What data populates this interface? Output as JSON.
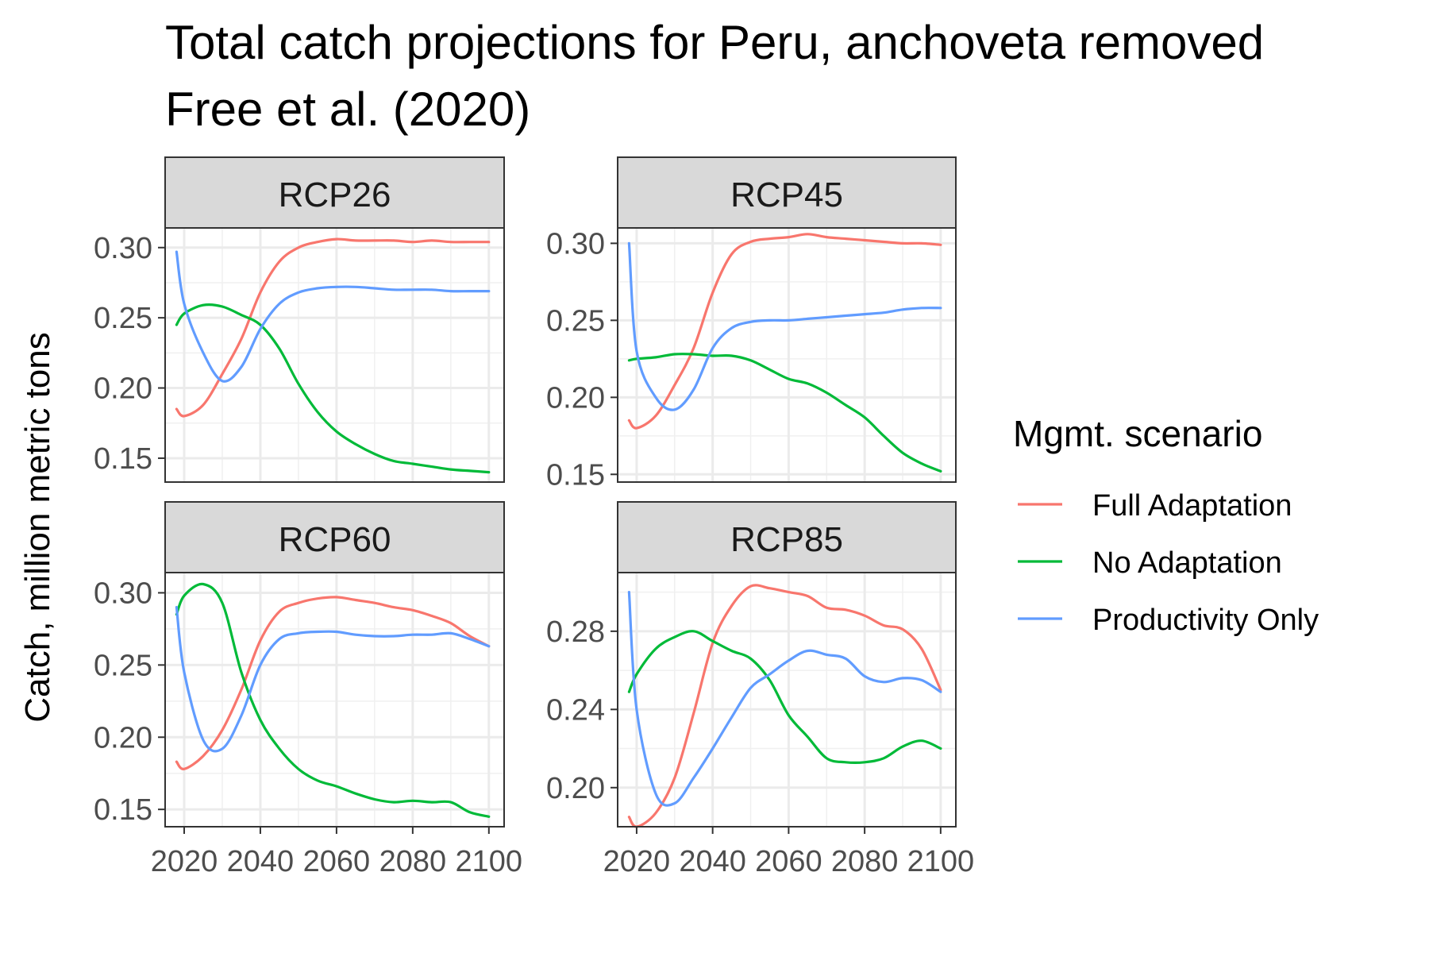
{
  "chart_data": {
    "type": "line",
    "title_lines": [
      "Total catch projections for Peru, anchoveta removed",
      "Free et al. (2020)"
    ],
    "ylabel": "Catch, million metric tons",
    "xlabel": "",
    "legend": {
      "title": "Mgmt. scenario",
      "placement": "right"
    },
    "series_styles": [
      {
        "name": "Full Adaptation",
        "color": "#F8766D"
      },
      {
        "name": "No Adaptation",
        "color": "#00BA38"
      },
      {
        "name": "Productivity Only",
        "color": "#619CFF"
      }
    ],
    "x_ticks": [
      2020,
      2040,
      2060,
      2080,
      2100
    ],
    "xlim": [
      2015,
      2104
    ],
    "grid": true,
    "facets": [
      {
        "label": "RCP26",
        "ylim": [
          0.133,
          0.314
        ],
        "y_ticks": [
          "0.15",
          "0.20",
          "0.25",
          "0.30"
        ],
        "x": [
          2018,
          2020,
          2025,
          2030,
          2035,
          2040,
          2045,
          2050,
          2055,
          2060,
          2065,
          2070,
          2075,
          2080,
          2085,
          2090,
          2095,
          2100
        ],
        "series": [
          {
            "name": "Full Adaptation",
            "values": [
              0.185,
              0.18,
              0.188,
              0.21,
              0.235,
              0.268,
              0.29,
              0.3,
              0.304,
              0.306,
              0.305,
              0.305,
              0.305,
              0.304,
              0.305,
              0.304,
              0.304,
              0.304
            ]
          },
          {
            "name": "No Adaptation",
            "values": [
              0.245,
              0.253,
              0.259,
              0.258,
              0.252,
              0.245,
              0.228,
              0.203,
              0.183,
              0.169,
              0.16,
              0.153,
              0.148,
              0.146,
              0.144,
              0.142,
              0.141,
              0.14
            ]
          },
          {
            "name": "Productivity Only",
            "values": [
              0.297,
              0.26,
              0.225,
              0.205,
              0.215,
              0.242,
              0.26,
              0.268,
              0.271,
              0.272,
              0.272,
              0.271,
              0.27,
              0.27,
              0.27,
              0.269,
              0.269,
              0.269
            ]
          }
        ]
      },
      {
        "label": "RCP45",
        "ylim": [
          0.145,
          0.31
        ],
        "y_ticks": [
          "0.15",
          "0.20",
          "0.25",
          "0.30"
        ],
        "x": [
          2018,
          2020,
          2025,
          2030,
          2035,
          2040,
          2045,
          2050,
          2055,
          2060,
          2065,
          2070,
          2075,
          2080,
          2085,
          2090,
          2095,
          2100
        ],
        "series": [
          {
            "name": "Full Adaptation",
            "values": [
              0.185,
              0.18,
              0.188,
              0.208,
              0.232,
              0.268,
              0.293,
              0.301,
              0.303,
              0.304,
              0.306,
              0.304,
              0.303,
              0.302,
              0.301,
              0.3,
              0.3,
              0.299
            ]
          },
          {
            "name": "No Adaptation",
            "values": [
              0.224,
              0.225,
              0.226,
              0.228,
              0.228,
              0.227,
              0.227,
              0.224,
              0.218,
              0.212,
              0.209,
              0.203,
              0.195,
              0.187,
              0.175,
              0.164,
              0.157,
              0.152
            ]
          },
          {
            "name": "Productivity Only",
            "values": [
              0.3,
              0.23,
              0.2,
              0.192,
              0.205,
              0.232,
              0.245,
              0.249,
              0.25,
              0.25,
              0.251,
              0.252,
              0.253,
              0.254,
              0.255,
              0.257,
              0.258,
              0.258
            ]
          }
        ]
      },
      {
        "label": "RCP60",
        "ylim": [
          0.138,
          0.314
        ],
        "y_ticks": [
          "0.15",
          "0.20",
          "0.25",
          "0.30"
        ],
        "x": [
          2018,
          2020,
          2025,
          2030,
          2035,
          2040,
          2045,
          2050,
          2055,
          2060,
          2065,
          2070,
          2075,
          2080,
          2085,
          2090,
          2095,
          2100
        ],
        "series": [
          {
            "name": "Full Adaptation",
            "values": [
              0.183,
              0.178,
              0.187,
              0.205,
              0.233,
              0.267,
              0.287,
              0.293,
              0.296,
              0.297,
              0.295,
              0.293,
              0.29,
              0.288,
              0.284,
              0.279,
              0.27,
              0.263
            ]
          },
          {
            "name": "No Adaptation",
            "values": [
              0.285,
              0.298,
              0.306,
              0.293,
              0.245,
              0.212,
              0.192,
              0.178,
              0.17,
              0.166,
              0.161,
              0.157,
              0.155,
              0.156,
              0.155,
              0.155,
              0.148,
              0.145
            ]
          },
          {
            "name": "Productivity Only",
            "values": [
              0.29,
              0.245,
              0.198,
              0.192,
              0.215,
              0.25,
              0.268,
              0.272,
              0.273,
              0.273,
              0.271,
              0.27,
              0.27,
              0.271,
              0.271,
              0.272,
              0.268,
              0.263
            ]
          }
        ]
      },
      {
        "label": "RCP85",
        "ylim": [
          0.18,
          0.31
        ],
        "y_ticks": [
          "0.20",
          "0.24",
          "0.28"
        ],
        "x": [
          2018,
          2020,
          2025,
          2030,
          2035,
          2040,
          2045,
          2050,
          2055,
          2060,
          2065,
          2070,
          2075,
          2080,
          2085,
          2090,
          2095,
          2100
        ],
        "series": [
          {
            "name": "Full Adaptation",
            "values": [
              0.185,
              0.18,
              0.187,
              0.205,
              0.238,
              0.274,
              0.293,
              0.303,
              0.302,
              0.3,
              0.298,
              0.292,
              0.291,
              0.288,
              0.283,
              0.281,
              0.271,
              0.25
            ]
          },
          {
            "name": "No Adaptation",
            "values": [
              0.249,
              0.258,
              0.271,
              0.277,
              0.28,
              0.275,
              0.27,
              0.266,
              0.255,
              0.237,
              0.226,
              0.215,
              0.213,
              0.213,
              0.215,
              0.221,
              0.224,
              0.22
            ]
          },
          {
            "name": "Productivity Only",
            "values": [
              0.3,
              0.24,
              0.197,
              0.192,
              0.205,
              0.22,
              0.236,
              0.251,
              0.258,
              0.265,
              0.27,
              0.268,
              0.266,
              0.257,
              0.254,
              0.256,
              0.255,
              0.249
            ]
          }
        ]
      }
    ]
  }
}
